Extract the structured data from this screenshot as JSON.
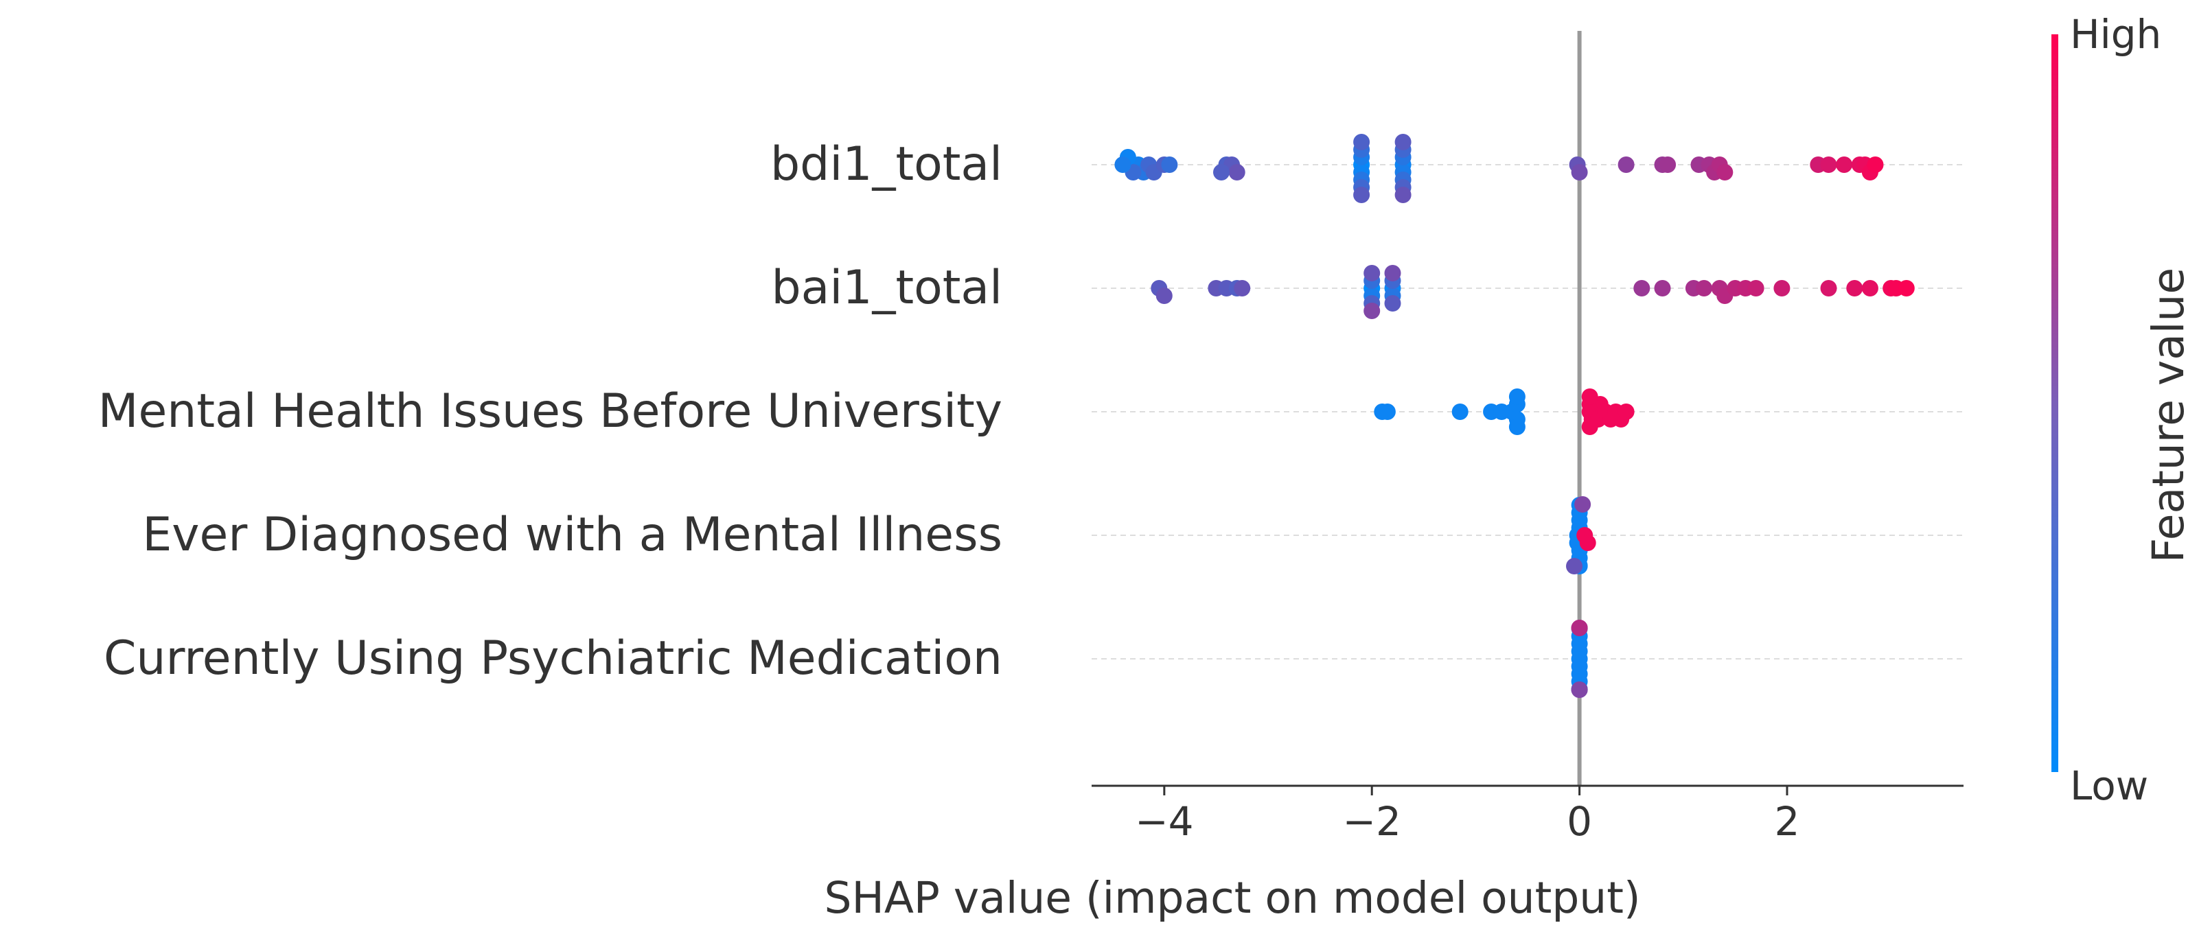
{
  "chart_data": {
    "type": "scatter",
    "subtype": "shap-beeswarm",
    "xlabel": "SHAP value (impact on model output)",
    "xlim": [
      -4.7,
      3.7
    ],
    "xticks": [
      -4,
      -2,
      0,
      2
    ],
    "xtick_labels": [
      "−4",
      "−2",
      "0",
      "2"
    ],
    "colorbar": {
      "title": "Feature value",
      "high_label": "High",
      "low_label": "Low",
      "low_color": "#008bfb",
      "high_color": "#ff0051"
    },
    "features": [
      {
        "name": "bdi1_total",
        "points": [
          [
            -4.3,
            0.1
          ],
          [
            -4.25,
            0.08
          ],
          [
            -4.2,
            0.15
          ],
          [
            -4.3,
            0.22
          ],
          [
            -4.15,
            0.25
          ],
          [
            -4.1,
            0.28
          ],
          [
            -4.0,
            0.3
          ],
          [
            -3.95,
            0.2
          ],
          [
            -4.35,
            0.05
          ],
          [
            -4.4,
            0.1
          ],
          [
            -3.4,
            0.3
          ],
          [
            -3.35,
            0.35
          ],
          [
            -3.3,
            0.4
          ],
          [
            -3.45,
            0.32
          ],
          [
            -2.1,
            0.0
          ],
          [
            -2.1,
            0.05
          ],
          [
            -2.1,
            0.1
          ],
          [
            -2.1,
            0.15
          ],
          [
            -2.1,
            0.2
          ],
          [
            -2.1,
            0.25
          ],
          [
            -2.1,
            0.3
          ],
          [
            -2.1,
            0.35
          ],
          [
            -1.7,
            0.05
          ],
          [
            -1.7,
            0.1
          ],
          [
            -1.7,
            0.15
          ],
          [
            -1.7,
            0.2
          ],
          [
            -1.7,
            0.25
          ],
          [
            -1.7,
            0.3
          ],
          [
            -1.7,
            0.35
          ],
          [
            -1.7,
            0.4
          ],
          [
            -0.02,
            0.4
          ],
          [
            0.0,
            0.45
          ],
          [
            0.45,
            0.55
          ],
          [
            0.8,
            0.6
          ],
          [
            0.85,
            0.62
          ],
          [
            1.15,
            0.62
          ],
          [
            1.25,
            0.65
          ],
          [
            1.3,
            0.68
          ],
          [
            1.35,
            0.7
          ],
          [
            1.4,
            0.72
          ],
          [
            2.3,
            0.82
          ],
          [
            2.4,
            0.85
          ],
          [
            2.55,
            0.88
          ],
          [
            2.7,
            0.9
          ],
          [
            2.75,
            0.92
          ],
          [
            2.8,
            0.95
          ],
          [
            2.85,
            0.97
          ]
        ]
      },
      {
        "name": "bai1_total",
        "points": [
          [
            -4.05,
            0.35
          ],
          [
            -4.0,
            0.4
          ],
          [
            -3.5,
            0.38
          ],
          [
            -3.4,
            0.35
          ],
          [
            -3.3,
            0.32
          ],
          [
            -3.25,
            0.4
          ],
          [
            -2.0,
            0.0
          ],
          [
            -2.0,
            0.1
          ],
          [
            -2.0,
            0.2
          ],
          [
            -2.0,
            0.3
          ],
          [
            -2.0,
            0.4
          ],
          [
            -2.0,
            0.5
          ],
          [
            -1.8,
            0.05
          ],
          [
            -1.8,
            0.15
          ],
          [
            -1.8,
            0.25
          ],
          [
            -1.8,
            0.35
          ],
          [
            -1.8,
            0.45
          ],
          [
            0.6,
            0.6
          ],
          [
            0.8,
            0.62
          ],
          [
            1.1,
            0.65
          ],
          [
            1.2,
            0.68
          ],
          [
            1.35,
            0.7
          ],
          [
            1.4,
            0.72
          ],
          [
            1.5,
            0.74
          ],
          [
            1.6,
            0.76
          ],
          [
            1.7,
            0.78
          ],
          [
            1.95,
            0.8
          ],
          [
            2.4,
            0.85
          ],
          [
            2.65,
            0.88
          ],
          [
            2.8,
            0.9
          ],
          [
            3.0,
            0.95
          ],
          [
            3.05,
            0.97
          ],
          [
            3.15,
            0.98
          ]
        ]
      },
      {
        "name": "Mental Health Issues Before University",
        "points": [
          [
            -1.9,
            0.05
          ],
          [
            -1.85,
            0.05
          ],
          [
            -1.15,
            0.05
          ],
          [
            -0.85,
            0.05
          ],
          [
            -0.75,
            0.05
          ],
          [
            -0.65,
            0.05
          ],
          [
            -0.6,
            0.05
          ],
          [
            -0.6,
            0.05
          ],
          [
            -0.6,
            0.05
          ],
          [
            -0.6,
            0.05
          ],
          [
            0.1,
            0.95
          ],
          [
            0.12,
            0.95
          ],
          [
            0.15,
            0.95
          ],
          [
            0.18,
            0.95
          ],
          [
            0.2,
            0.95
          ],
          [
            0.25,
            0.95
          ],
          [
            0.3,
            0.95
          ],
          [
            0.35,
            0.95
          ],
          [
            0.4,
            0.95
          ],
          [
            0.45,
            0.95
          ],
          [
            0.1,
            0.95
          ],
          [
            0.1,
            0.95
          ],
          [
            0.1,
            0.95
          ]
        ]
      },
      {
        "name": "Ever Diagnosed with a Mental Illness",
        "points": [
          [
            -0.02,
            0.05
          ],
          [
            -0.02,
            0.05
          ],
          [
            0.0,
            0.05
          ],
          [
            0.0,
            0.05
          ],
          [
            0.0,
            0.05
          ],
          [
            0.0,
            0.05
          ],
          [
            0.0,
            0.05
          ],
          [
            0.0,
            0.05
          ],
          [
            0.0,
            0.05
          ],
          [
            0.0,
            0.05
          ],
          [
            0.05,
            0.95
          ],
          [
            0.08,
            0.95
          ],
          [
            0.03,
            0.5
          ],
          [
            -0.05,
            0.4
          ]
        ]
      },
      {
        "name": "Currently Using Psychiatric Medication",
        "points": [
          [
            0.0,
            0.05
          ],
          [
            0.0,
            0.05
          ],
          [
            0.0,
            0.05
          ],
          [
            0.0,
            0.05
          ],
          [
            0.0,
            0.05
          ],
          [
            0.0,
            0.05
          ],
          [
            0.0,
            0.05
          ],
          [
            0.0,
            0.05
          ],
          [
            0.0,
            0.05
          ],
          [
            0.0,
            0.05
          ],
          [
            0.0,
            0.05
          ],
          [
            0.0,
            0.6
          ],
          [
            0.0,
            0.95
          ],
          [
            0.0,
            0.5
          ],
          [
            0.0,
            0.7
          ]
        ]
      }
    ]
  }
}
